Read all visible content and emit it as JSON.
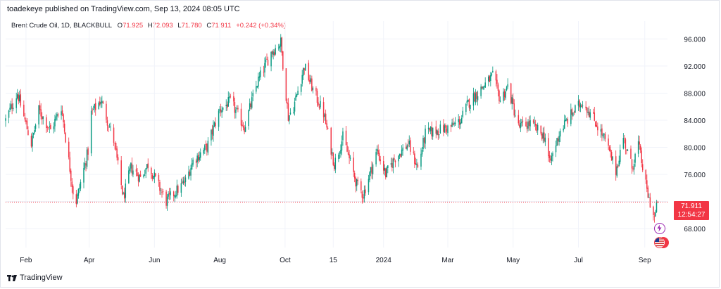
{
  "header": {
    "publisher": "toadekeye published on TradingView.com, Sep 13, 2024 08:05 UTC"
  },
  "legend": {
    "symbol": "Brent Crude Oil, 1D, BLACKBULL",
    "open_label": "O",
    "open": "71.925",
    "high_label": "H",
    "high": "72.093",
    "low_label": "L",
    "low": "71.780",
    "close_label": "C",
    "close": "71.911",
    "change": "+0.242 (+0.34%)"
  },
  "price_tag": {
    "price": "71.911",
    "countdown": "12:54:27"
  },
  "footer": {
    "brand": "TradingView"
  },
  "colors": {
    "up": "#089981",
    "down": "#f23645",
    "grid": "#f0f3fa",
    "axis_text": "#131722"
  },
  "chart_data": {
    "type": "candlestick",
    "y_axis": {
      "ticks": [
        "96.000",
        "92.000",
        "88.000",
        "84.000",
        "80.000",
        "76.000",
        "68.000"
      ],
      "tick_values": [
        96,
        92,
        88,
        84,
        80,
        76,
        68
      ],
      "range": [
        65.2,
        97.6
      ]
    },
    "x_axis": {
      "ticks": [
        "Feb",
        "Apr",
        "Jun",
        "Aug",
        "Oct",
        "15",
        "2024",
        "Mar",
        "May",
        "Jul",
        "Sep"
      ],
      "range": [
        "2023-01-13",
        "2024-09-13"
      ]
    },
    "last_price": 71.911,
    "grid": true,
    "series": {
      "anchors": [
        [
          "2023-01-13",
          84.0
        ],
        [
          "2023-01-24",
          88.0
        ],
        [
          "2023-02-06",
          80.5
        ],
        [
          "2023-02-13",
          85.5
        ],
        [
          "2023-02-24",
          82.5
        ],
        [
          "2023-03-06",
          86.0
        ],
        [
          "2023-03-17",
          73.5
        ],
        [
          "2023-03-20",
          72.0
        ],
        [
          "2023-03-31",
          79.5
        ],
        [
          "2023-04-03",
          85.0
        ],
        [
          "2023-04-12",
          87.0
        ],
        [
          "2023-04-24",
          81.0
        ],
        [
          "2023-05-03",
          72.5
        ],
        [
          "2023-05-10",
          77.0
        ],
        [
          "2023-05-19",
          75.5
        ],
        [
          "2023-05-26",
          77.5
        ],
        [
          "2023-06-12",
          72.0
        ],
        [
          "2023-06-23",
          73.8
        ],
        [
          "2023-06-30",
          75.0
        ],
        [
          "2023-07-07",
          78.0
        ],
        [
          "2023-07-20",
          80.0
        ],
        [
          "2023-08-01",
          85.5
        ],
        [
          "2023-08-11",
          86.8
        ],
        [
          "2023-08-24",
          83.0
        ],
        [
          "2023-09-05",
          89.5
        ],
        [
          "2023-09-18",
          94.0
        ],
        [
          "2023-09-27",
          95.5
        ],
        [
          "2023-10-04",
          84.5
        ],
        [
          "2023-10-09",
          86.0
        ],
        [
          "2023-10-19",
          92.0
        ],
        [
          "2023-10-27",
          88.5
        ],
        [
          "2023-11-06",
          85.0
        ],
        [
          "2023-11-16",
          77.5
        ],
        [
          "2023-11-24",
          81.5
        ],
        [
          "2023-12-07",
          74.5
        ],
        [
          "2023-12-13",
          73.0
        ],
        [
          "2023-12-26",
          79.5
        ],
        [
          "2024-01-03",
          76.0
        ],
        [
          "2024-01-12",
          78.5
        ],
        [
          "2024-01-24",
          80.5
        ],
        [
          "2024-02-02",
          77.0
        ],
        [
          "2024-02-09",
          82.0
        ],
        [
          "2024-02-20",
          82.5
        ],
        [
          "2024-03-04",
          83.0
        ],
        [
          "2024-03-13",
          84.0
        ],
        [
          "2024-03-20",
          86.5
        ],
        [
          "2024-04-03",
          89.0
        ],
        [
          "2024-04-12",
          90.5
        ],
        [
          "2024-04-19",
          87.0
        ],
        [
          "2024-04-26",
          89.0
        ],
        [
          "2024-05-06",
          83.0
        ],
        [
          "2024-05-17",
          83.5
        ],
        [
          "2024-05-31",
          81.5
        ],
        [
          "2024-06-04",
          77.5
        ],
        [
          "2024-06-14",
          82.5
        ],
        [
          "2024-06-25",
          85.0
        ],
        [
          "2024-07-05",
          86.8
        ],
        [
          "2024-07-16",
          84.0
        ],
        [
          "2024-07-26",
          81.0
        ],
        [
          "2024-08-05",
          76.5
        ],
        [
          "2024-08-12",
          81.5
        ],
        [
          "2024-08-20",
          77.0
        ],
        [
          "2024-08-26",
          80.5
        ],
        [
          "2024-09-03",
          73.5
        ],
        [
          "2024-09-10",
          69.5
        ],
        [
          "2024-09-13",
          71.911
        ]
      ]
    }
  }
}
